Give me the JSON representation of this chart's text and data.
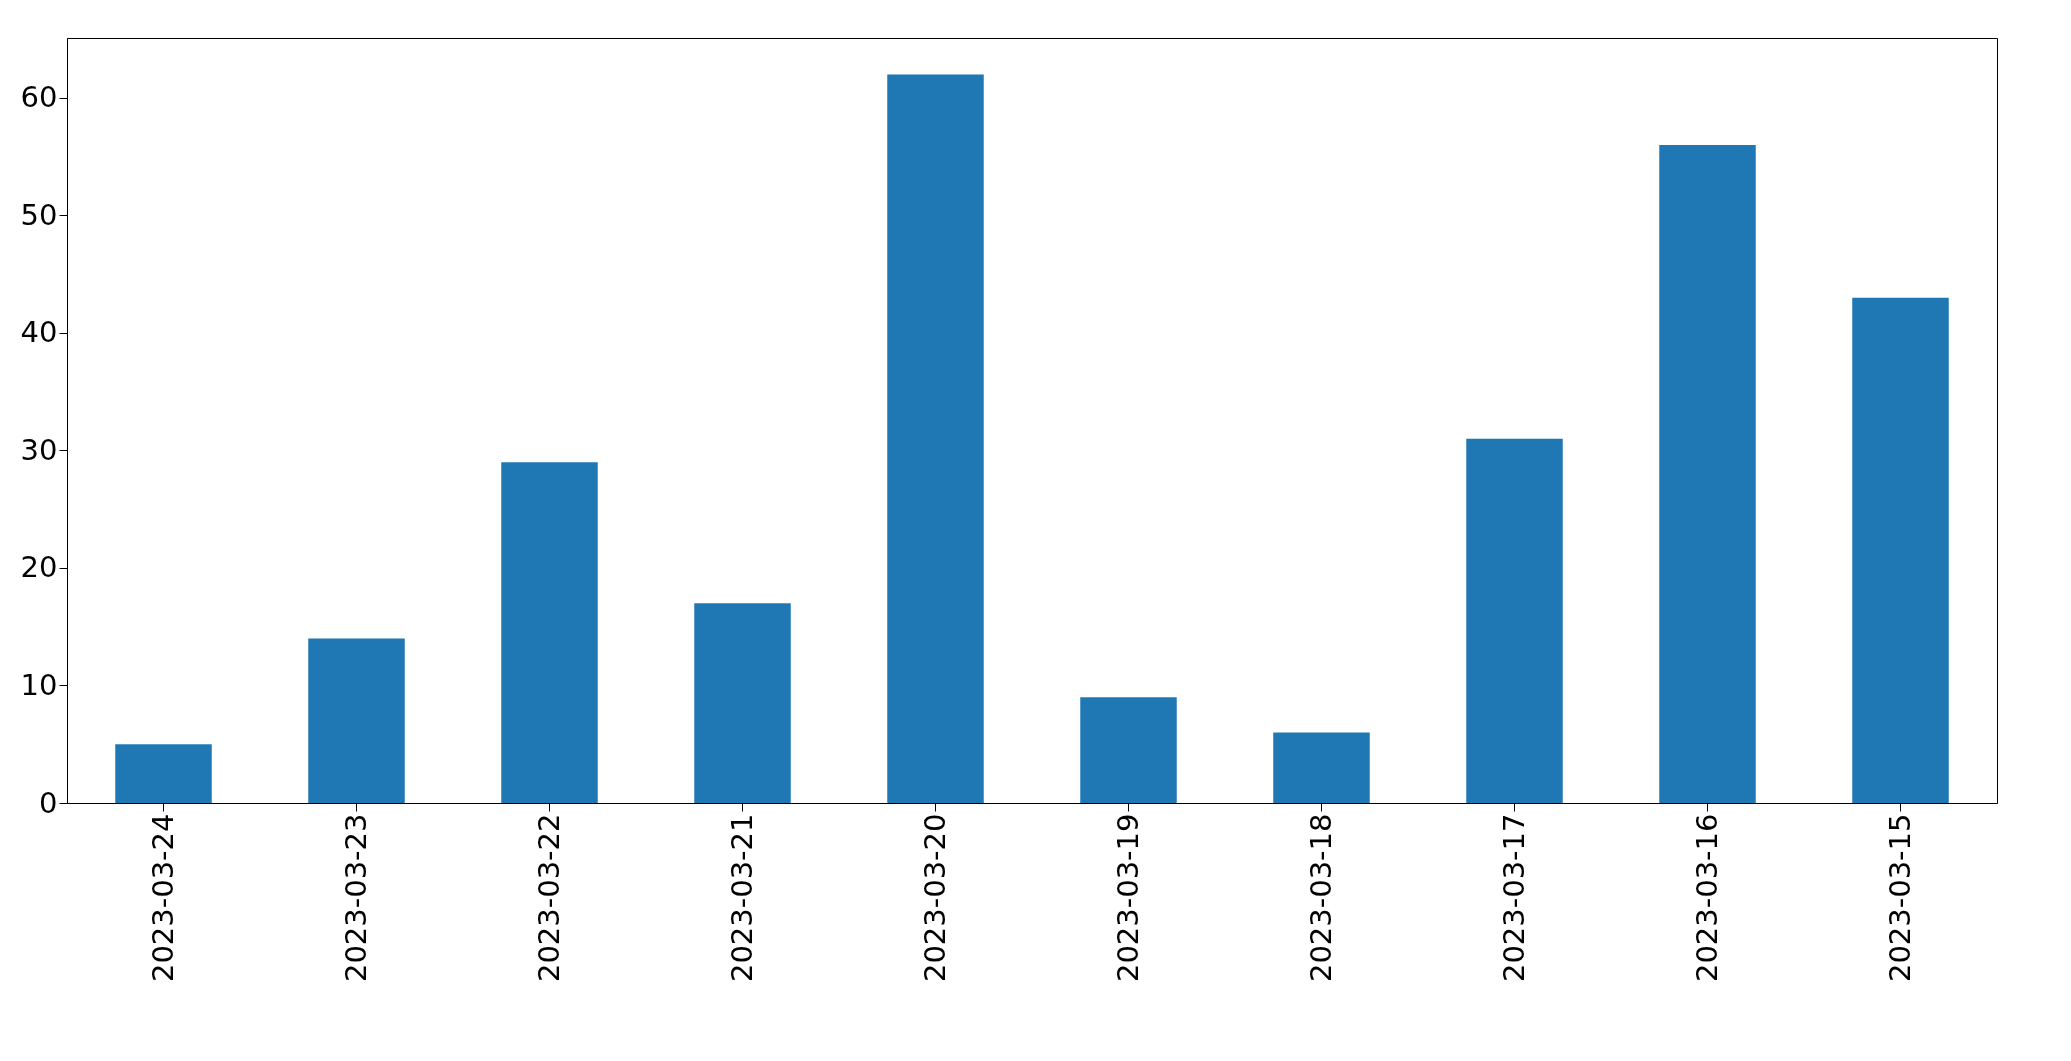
{
  "chart_data": {
    "type": "bar",
    "categories": [
      "2023-03-24",
      "2023-03-23",
      "2023-03-22",
      "2023-03-21",
      "2023-03-20",
      "2023-03-19",
      "2023-03-18",
      "2023-03-17",
      "2023-03-16",
      "2023-03-15"
    ],
    "values": [
      5,
      14,
      29,
      17,
      62,
      9,
      6,
      31,
      56,
      43
    ],
    "color": "#1f77b4",
    "ylim": [
      0,
      65.1
    ],
    "yticks": [
      0,
      10,
      20,
      30,
      40,
      50,
      60
    ],
    "grid": false
  }
}
